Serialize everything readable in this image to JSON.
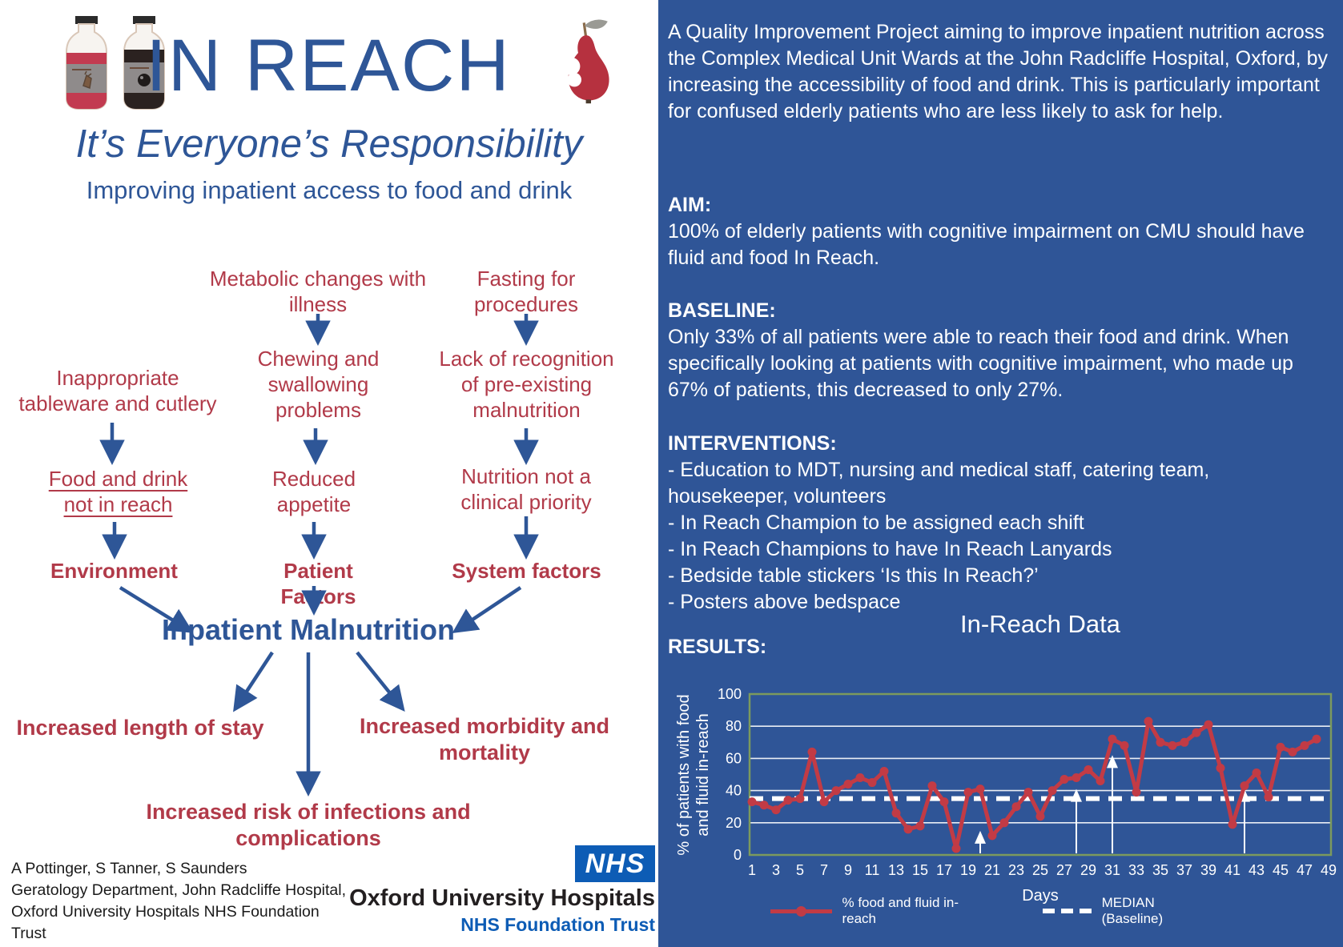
{
  "header": {
    "title": "IN REACH",
    "tagline": "It’s Everyone’s Responsibility",
    "subtitle": "Improving inpatient access to food and drink"
  },
  "flowchart": {
    "metabolic": "Metabolic changes with illness",
    "fasting": "Fasting for procedures",
    "inappropriate": "Inappropriate tableware and cutlery",
    "chewing": "Chewing and swallowing problems",
    "lack": "Lack of recognition of pre-existing malnutrition",
    "food_drink": "Food and drink not in reach",
    "reduced": "Reduced appetite",
    "nutrition": "Nutrition not a clinical priority",
    "environment": "Environment",
    "patient_factors": "Patient Factors",
    "system_factors": "System factors",
    "malnutrition": "Inpatient Malnutrition",
    "length_of_stay": "Increased length of stay",
    "morbidity": "Increased morbidity and mortality",
    "infections": "Increased risk of infections and complications"
  },
  "footer": {
    "attribution": "A Pottinger, S Tanner, S Saunders\nGeratology Department, John Radcliffe Hospital,\nOxford University Hospitals NHS Foundation\nTrust",
    "nhs_logo": "NHS",
    "org_name": "Oxford University Hospitals",
    "org_sub": "NHS Foundation Trust"
  },
  "panel": {
    "intro": "A Quality Improvement Project aiming to improve inpatient nutrition across the Complex Medical Unit Wards at the John Radcliffe Hospital, Oxford, by increasing the accessibility of food and drink. This is particularly important for confused elderly patients who are less likely to ask for help.",
    "aim_label": "AIM:",
    "aim_text": "100% of elderly patients with cognitive impairment on CMU should have fluid and food In Reach.",
    "baseline_label": "BASELINE:",
    "baseline_text": "Only 33% of all patients were able to reach their food and drink. When specifically looking at patients with cognitive impairment, who made up 67% of patients, this decreased to only 27%.",
    "interventions_label": "INTERVENTIONS:",
    "interventions": [
      "-  Education to MDT, nursing and medical staff, catering team, housekeeper, volunteers",
      "- In Reach Champion to be assigned each shift",
      "- In Reach Champions to have In Reach Lanyards",
      "- Bedside table stickers ‘Is this In Reach?’",
      "- Posters above bedspace"
    ],
    "results_label": "RESULTS:"
  },
  "chart_data": {
    "type": "line",
    "title": "In-Reach Data",
    "xlabel": "Days",
    "ylabel_line1": "% of patients with food",
    "ylabel_line2": "and fluid in-reach",
    "ylim": [
      0,
      100
    ],
    "yticks": [
      0,
      20,
      40,
      60,
      80,
      100
    ],
    "xticks": [
      1,
      3,
      5,
      7,
      9,
      11,
      13,
      15,
      17,
      19,
      21,
      23,
      25,
      27,
      29,
      31,
      33,
      35,
      37,
      39,
      41,
      43,
      45,
      47,
      49
    ],
    "grid": "horizontal white lines, sage-green frame, legend bottom",
    "x": [
      1,
      2,
      3,
      4,
      5,
      6,
      7,
      8,
      9,
      10,
      11,
      12,
      13,
      14,
      15,
      16,
      17,
      18,
      19,
      20,
      21,
      22,
      23,
      24,
      25,
      26,
      27,
      28,
      29,
      30,
      31,
      32,
      33,
      34,
      35,
      36,
      37,
      38,
      39,
      40,
      41,
      42,
      43,
      44,
      45,
      46,
      47,
      48
    ],
    "series": [
      {
        "name": "% food and fluid in-reach",
        "color": "#c23b45",
        "values": [
          33,
          31,
          28,
          34,
          35,
          64,
          33,
          40,
          44,
          48,
          45,
          52,
          26,
          16,
          18,
          43,
          33,
          4,
          39,
          41,
          12,
          20,
          30,
          39,
          24,
          40,
          47,
          48,
          53,
          46,
          72,
          68,
          39,
          83,
          70,
          68,
          70,
          76,
          81,
          54,
          19,
          43,
          51,
          36,
          67,
          64,
          68,
          72
        ]
      }
    ],
    "median": {
      "name": "MEDIAN (Baseline)",
      "value": 35,
      "color": "#ffffff"
    },
    "intervention_arrows": [
      {
        "day": 20,
        "tip": 15
      },
      {
        "day": 28,
        "tip": 41
      },
      {
        "day": 31,
        "tip": 62
      },
      {
        "day": 42,
        "tip": 41
      }
    ]
  },
  "colors": {
    "panel_blue": "#2f5597",
    "title_blue": "#2e5697",
    "node_red": "#b13a49",
    "line_red": "#c23b45",
    "nhs_blue": "#0d5cb5",
    "chart_frame_green": "#7c9a5d"
  }
}
